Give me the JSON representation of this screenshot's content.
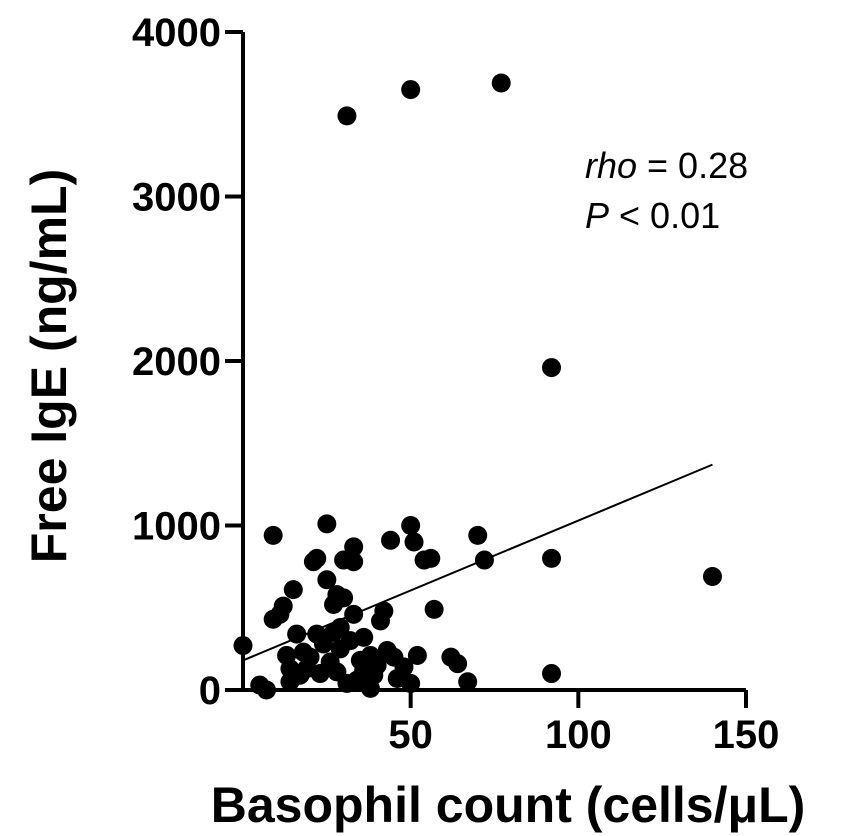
{
  "chart_data": {
    "type": "scatter",
    "title": "",
    "xlabel": "Basophil count (cells/μL)",
    "ylabel": "Free IgE (ng/mL)",
    "xlim": [
      0,
      150
    ],
    "ylim": [
      0,
      4000
    ],
    "xticks": [
      {
        "value": 50,
        "label": "50"
      },
      {
        "value": 100,
        "label": "100"
      },
      {
        "value": 150,
        "label": "150"
      }
    ],
    "yticks": [
      {
        "value": 0,
        "label": "0"
      },
      {
        "value": 1000,
        "label": "1000"
      },
      {
        "value": 2000,
        "label": "2000"
      },
      {
        "value": 3000,
        "label": "3000"
      },
      {
        "value": 4000,
        "label": "4000"
      }
    ],
    "grid": false,
    "legend": "none",
    "marker_color": "#000000",
    "annotation": {
      "stat1_name": "rho",
      "stat1_rest": " = 0.28",
      "stat2_name": "P",
      "stat2_rest": " < 0.01"
    },
    "regression_line": {
      "x": [
        0,
        140
      ],
      "y": [
        180,
        1370
      ]
    },
    "points": [
      {
        "x": 31,
        "y": 3490
      },
      {
        "x": 50,
        "y": 3650
      },
      {
        "x": 77,
        "y": 3690
      },
      {
        "x": 92,
        "y": 1960
      },
      {
        "x": 140,
        "y": 690
      },
      {
        "x": 92,
        "y": 800
      },
      {
        "x": 92,
        "y": 100
      },
      {
        "x": 72,
        "y": 790
      },
      {
        "x": 70,
        "y": 940
      },
      {
        "x": 57,
        "y": 490
      },
      {
        "x": 56,
        "y": 800
      },
      {
        "x": 54,
        "y": 790
      },
      {
        "x": 51,
        "y": 900
      },
      {
        "x": 50,
        "y": 1000
      },
      {
        "x": 52,
        "y": 210
      },
      {
        "x": 48,
        "y": 140
      },
      {
        "x": 50,
        "y": 40
      },
      {
        "x": 62,
        "y": 200
      },
      {
        "x": 64,
        "y": 160
      },
      {
        "x": 67,
        "y": 50
      },
      {
        "x": 44,
        "y": 910
      },
      {
        "x": 43,
        "y": 240
      },
      {
        "x": 42,
        "y": 480
      },
      {
        "x": 41,
        "y": 420
      },
      {
        "x": 40,
        "y": 150
      },
      {
        "x": 39,
        "y": 90
      },
      {
        "x": 38,
        "y": 210
      },
      {
        "x": 37,
        "y": 50
      },
      {
        "x": 36,
        "y": 120
      },
      {
        "x": 35,
        "y": 180
      },
      {
        "x": 34,
        "y": 60
      },
      {
        "x": 33,
        "y": 870
      },
      {
        "x": 33,
        "y": 780
      },
      {
        "x": 33,
        "y": 460
      },
      {
        "x": 32,
        "y": 300
      },
      {
        "x": 31,
        "y": 40
      },
      {
        "x": 30,
        "y": 790
      },
      {
        "x": 30,
        "y": 560
      },
      {
        "x": 29,
        "y": 250
      },
      {
        "x": 28,
        "y": 580
      },
      {
        "x": 28,
        "y": 110
      },
      {
        "x": 27,
        "y": 520
      },
      {
        "x": 27,
        "y": 350
      },
      {
        "x": 26,
        "y": 170
      },
      {
        "x": 25,
        "y": 1010
      },
      {
        "x": 25,
        "y": 670
      },
      {
        "x": 24,
        "y": 280
      },
      {
        "x": 23,
        "y": 100
      },
      {
        "x": 22,
        "y": 800
      },
      {
        "x": 22,
        "y": 340
      },
      {
        "x": 21,
        "y": 780
      },
      {
        "x": 20,
        "y": 200
      },
      {
        "x": 19,
        "y": 130
      },
      {
        "x": 18,
        "y": 230
      },
      {
        "x": 17,
        "y": 90
      },
      {
        "x": 16,
        "y": 340
      },
      {
        "x": 15,
        "y": 610
      },
      {
        "x": 14,
        "y": 130
      },
      {
        "x": 14,
        "y": 50
      },
      {
        "x": 13,
        "y": 210
      },
      {
        "x": 12,
        "y": 510
      },
      {
        "x": 11,
        "y": 460
      },
      {
        "x": 9,
        "y": 940
      },
      {
        "x": 9,
        "y": 430
      },
      {
        "x": 7,
        "y": 0
      },
      {
        "x": 5,
        "y": 30
      },
      {
        "x": 0,
        "y": 270
      },
      {
        "x": 45,
        "y": 200
      },
      {
        "x": 36,
        "y": 320
      },
      {
        "x": 29,
        "y": 380
      },
      {
        "x": 38,
        "y": 10
      },
      {
        "x": 46,
        "y": 70
      }
    ]
  }
}
